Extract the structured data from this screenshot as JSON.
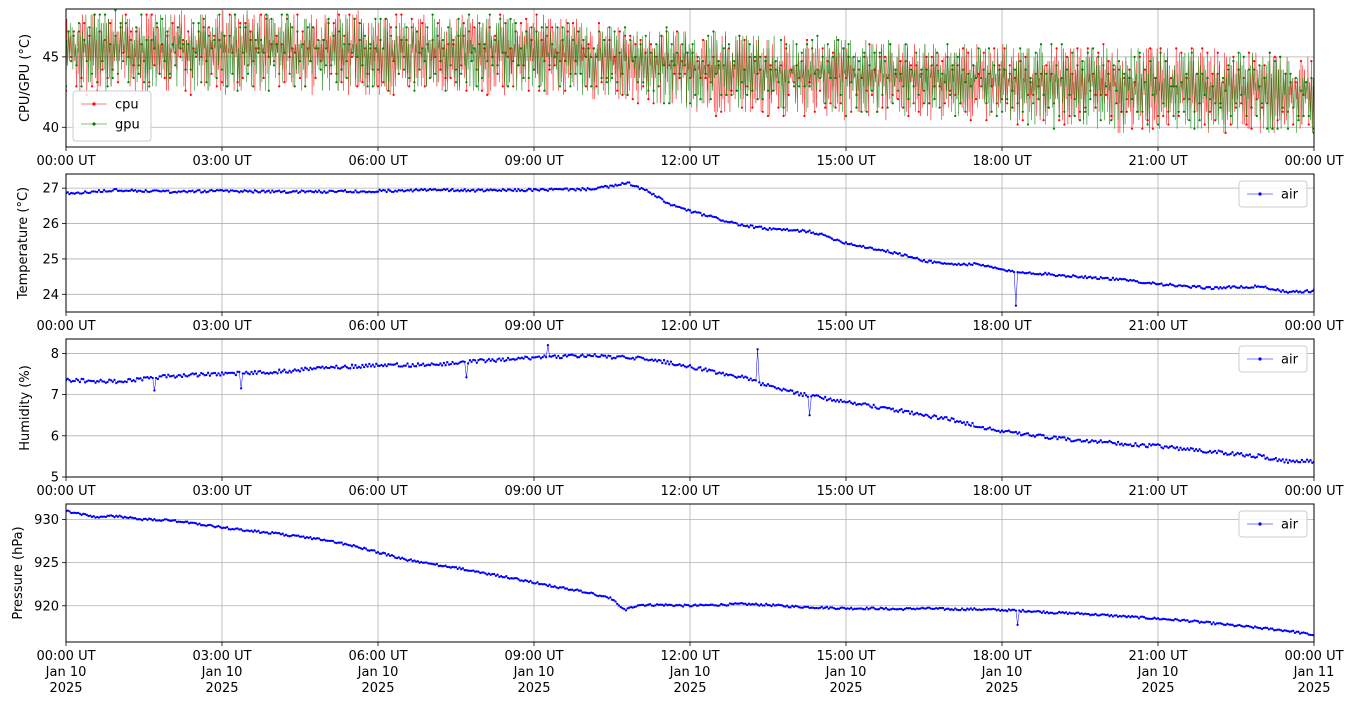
{
  "chart_data": [
    {
      "type": "line",
      "ylabel": "CPU/GPU (°C)",
      "xlim": [
        "2025-01-10T00:00Z",
        "2025-01-11T00:00Z"
      ],
      "ylim": [
        38.6,
        48.4
      ],
      "yticks": [
        40,
        45
      ],
      "grid": true,
      "legend_loc": "lower-left",
      "x_tick_labels": [
        "00:00 UT",
        "03:00 UT",
        "06:00 UT",
        "09:00 UT",
        "12:00 UT",
        "15:00 UT",
        "18:00 UT",
        "21:00 UT",
        "00:00 UT"
      ],
      "series": [
        {
          "name": "cpu",
          "color": "#ff0000",
          "values_note_style": "oscillating",
          "times": [
            "00:00",
            "01:30",
            "03:00",
            "04:30",
            "06:00",
            "07:30",
            "09:00",
            "10:30",
            "12:00",
            "13:30",
            "15:00",
            "16:30",
            "18:00",
            "19:30",
            "21:00",
            "22:30",
            "24:00"
          ],
          "low": [
            42.2,
            42.2,
            42.2,
            42.2,
            42.2,
            42.2,
            42.2,
            42.0,
            41.0,
            40.6,
            40.6,
            40.6,
            40.2,
            39.8,
            39.6,
            39.6,
            39.6
          ],
          "high": [
            48.2,
            48.2,
            48.2,
            48.2,
            48.2,
            48.0,
            48.0,
            47.4,
            47.0,
            46.6,
            46.2,
            46.0,
            45.8,
            45.8,
            45.8,
            45.6,
            45.0
          ]
        },
        {
          "name": "gpu",
          "color": "#008000",
          "times": [
            "00:00",
            "01:30",
            "03:00",
            "04:30",
            "06:00",
            "07:30",
            "09:00",
            "10:30",
            "12:00",
            "13:30",
            "15:00",
            "16:30",
            "18:00",
            "19:30",
            "21:00",
            "22:30",
            "24:00"
          ],
          "low": [
            42.6,
            42.6,
            42.6,
            42.6,
            42.6,
            42.6,
            42.4,
            42.2,
            41.4,
            40.8,
            40.8,
            40.8,
            40.4,
            39.8,
            39.6,
            39.6,
            39.6
          ],
          "high": [
            48.2,
            48.2,
            48.2,
            48.2,
            48.0,
            48.0,
            47.8,
            47.2,
            47.0,
            46.6,
            46.4,
            46.0,
            46.0,
            45.8,
            45.8,
            45.4,
            45.0
          ]
        }
      ]
    },
    {
      "type": "line",
      "ylabel": "Temperature (°C)",
      "xlim": [
        "2025-01-10T00:00Z",
        "2025-01-11T00:00Z"
      ],
      "ylim": [
        23.5,
        27.4
      ],
      "yticks": [
        24,
        25,
        26,
        27
      ],
      "grid": true,
      "legend_loc": "top-right",
      "x_tick_labels": [
        "00:00 UT",
        "03:00 UT",
        "06:00 UT",
        "09:00 UT",
        "12:00 UT",
        "15:00 UT",
        "18:00 UT",
        "21:00 UT",
        "00:00 UT"
      ],
      "series": [
        {
          "name": "air",
          "color": "#0000ff",
          "x_hours": [
            0,
            1,
            2,
            3,
            4,
            5,
            6,
            7,
            8,
            9,
            10,
            10.5,
            10.8,
            11.2,
            11.6,
            12,
            12.5,
            13,
            13.5,
            14,
            14.3,
            14.6,
            15,
            15.5,
            16,
            16.5,
            17,
            17.5,
            18,
            18.3,
            18.5,
            19,
            19.5,
            20,
            20.5,
            21,
            21.5,
            22,
            22.5,
            23,
            23.5,
            24
          ],
          "y": [
            26.85,
            26.95,
            26.9,
            26.92,
            26.9,
            26.9,
            26.92,
            26.95,
            26.93,
            26.95,
            26.97,
            27.05,
            27.15,
            26.9,
            26.55,
            26.35,
            26.15,
            25.95,
            25.85,
            25.8,
            25.78,
            25.65,
            25.45,
            25.3,
            25.15,
            24.95,
            24.85,
            24.85,
            24.7,
            24.6,
            24.62,
            24.55,
            24.5,
            24.45,
            24.38,
            24.3,
            24.22,
            24.18,
            24.2,
            24.22,
            24.05,
            24.1
          ],
          "outliers": [
            {
              "x_hours": 18.25,
              "y": 23.68
            }
          ]
        }
      ]
    },
    {
      "type": "line",
      "ylabel": "Humidity (%)",
      "xlim": [
        "2025-01-10T00:00Z",
        "2025-01-11T00:00Z"
      ],
      "ylim": [
        5.0,
        8.35
      ],
      "yticks": [
        5,
        6,
        7,
        8
      ],
      "grid": true,
      "legend_loc": "top-right",
      "x_tick_labels": [
        "00:00 UT",
        "03:00 UT",
        "06:00 UT",
        "09:00 UT",
        "12:00 UT",
        "15:00 UT",
        "18:00 UT",
        "21:00 UT",
        "00:00 UT"
      ],
      "series": [
        {
          "name": "air",
          "color": "#0000ff",
          "x_hours": [
            0,
            1,
            2,
            3,
            4,
            5,
            6,
            7,
            8,
            9,
            10,
            11,
            11.5,
            12,
            12.5,
            13,
            13.5,
            14,
            14.5,
            15,
            15.5,
            16,
            16.5,
            17,
            17.5,
            18,
            18.5,
            19,
            19.5,
            20,
            20.5,
            21,
            21.5,
            22,
            22.5,
            23,
            23.5,
            24
          ],
          "y": [
            7.35,
            7.32,
            7.45,
            7.5,
            7.55,
            7.65,
            7.72,
            7.72,
            7.82,
            7.9,
            7.95,
            7.88,
            7.8,
            7.68,
            7.55,
            7.42,
            7.22,
            7.05,
            6.92,
            6.82,
            6.72,
            6.62,
            6.5,
            6.4,
            6.25,
            6.1,
            6.02,
            5.95,
            5.88,
            5.85,
            5.78,
            5.75,
            5.68,
            5.62,
            5.55,
            5.5,
            5.38,
            5.38
          ],
          "outliers": [
            {
              "x_hours": 9.25,
              "y": 8.2
            },
            {
              "x_hours": 13.3,
              "y": 8.1
            },
            {
              "x_hours": 14.3,
              "y": 6.5
            },
            {
              "x_hours": 3.35,
              "y": 7.15
            },
            {
              "x_hours": 1.7,
              "y": 7.1
            },
            {
              "x_hours": 7.7,
              "y": 7.42
            }
          ]
        }
      ]
    },
    {
      "type": "line",
      "ylabel": "Pressure (hPa)",
      "xlim": [
        "2025-01-10T00:00Z",
        "2025-01-11T00:00Z"
      ],
      "ylim": [
        915.8,
        931.8
      ],
      "yticks": [
        920,
        925,
        930
      ],
      "grid": true,
      "legend_loc": "top-right",
      "x_tick_labels": [
        "00:00 UT\nJan 10\n2025",
        "03:00 UT\nJan 10\n2025",
        "06:00 UT\nJan 10\n2025",
        "09:00 UT\nJan 10\n2025",
        "12:00 UT\nJan 10\n2025",
        "15:00 UT\nJan 10\n2025",
        "18:00 UT\nJan 10\n2025",
        "21:00 UT\nJan 10\n2025",
        "00:00 UT\nJan 11\n2025"
      ],
      "series": [
        {
          "name": "air",
          "color": "#0000ff",
          "x_hours": [
            0,
            0.3,
            0.6,
            1,
            1.5,
            2,
            2.5,
            3,
            3.5,
            4,
            4.5,
            5,
            5.5,
            6,
            6.5,
            7,
            7.5,
            8,
            8.5,
            9,
            9.5,
            10,
            10.5,
            10.75,
            11,
            11.5,
            12,
            12.5,
            13,
            13.5,
            14,
            14.5,
            15,
            15.5,
            16,
            16.5,
            17,
            17.5,
            18,
            18.5,
            19,
            19.5,
            20,
            20.5,
            21,
            21.5,
            22,
            22.5,
            23,
            23.5,
            24
          ],
          "y": [
            931.0,
            930.6,
            930.3,
            930.4,
            930.0,
            929.9,
            929.5,
            929.1,
            928.7,
            928.4,
            928.0,
            927.6,
            927.0,
            926.2,
            925.4,
            924.9,
            924.4,
            923.8,
            923.3,
            922.7,
            922.1,
            921.6,
            920.8,
            919.5,
            920.1,
            920.1,
            920.0,
            920.1,
            920.2,
            920.1,
            919.9,
            919.8,
            919.7,
            919.7,
            919.6,
            919.7,
            919.6,
            919.6,
            919.5,
            919.4,
            919.2,
            919.1,
            918.9,
            918.7,
            918.5,
            918.3,
            918.0,
            917.7,
            917.4,
            917.1,
            916.6
          ],
          "outliers": [
            {
              "x_hours": 18.3,
              "y": 917.8
            }
          ]
        }
      ]
    }
  ],
  "legend_labels": {
    "cpu": "cpu",
    "gpu": "gpu",
    "air": "air"
  }
}
